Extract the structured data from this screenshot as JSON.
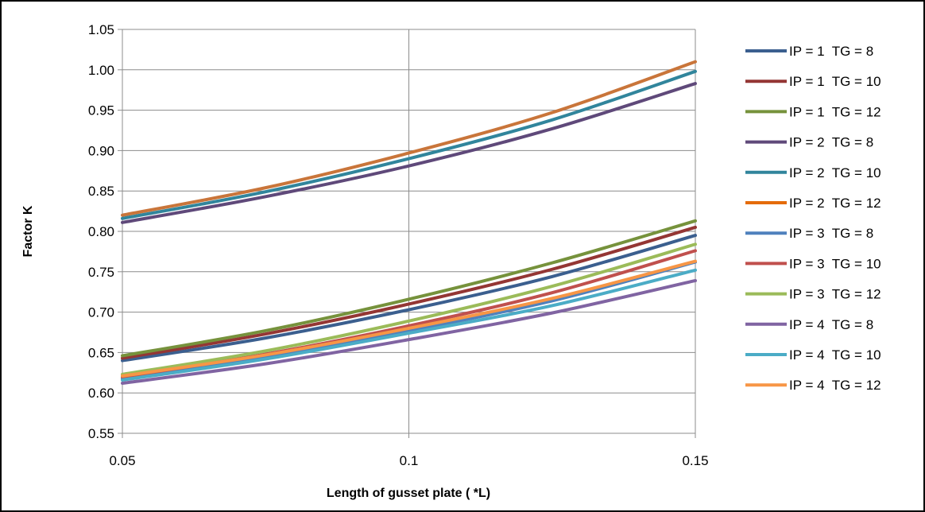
{
  "chart_data": {
    "type": "line",
    "title": "",
    "xlabel": "Length of gusset plate   ( *L)",
    "ylabel": "Factor   K",
    "x": [
      0.05,
      0.075,
      0.1,
      0.125,
      0.15
    ],
    "x_tick_labels": [
      "0.05",
      "0.1",
      "0.15"
    ],
    "x_ticks": [
      0.05,
      0.1,
      0.15
    ],
    "xlim": [
      0.05,
      0.15
    ],
    "ylim": [
      0.55,
      1.05
    ],
    "y_ticks": [
      0.55,
      0.6,
      0.65,
      0.7,
      0.75,
      0.8,
      0.85,
      0.9,
      0.95,
      1.0,
      1.05
    ],
    "y_tick_labels": [
      "0.55",
      "0.60",
      "0.65",
      "0.70",
      "0.75",
      "0.80",
      "0.85",
      "0.90",
      "0.95",
      "1.00",
      "1.05"
    ],
    "grid": "vertical and horizontal major gridlines",
    "legend_position": "right",
    "series": [
      {
        "name": "IP = 1  TG = 8",
        "color": "#3b5f8f",
        "values": [
          0.64,
          0.668,
          0.703,
          0.744,
          0.795
        ]
      },
      {
        "name": "IP = 1  TG = 10",
        "color": "#943634",
        "values": [
          0.643,
          0.673,
          0.71,
          0.753,
          0.805
        ]
      },
      {
        "name": "IP = 1  TG = 12",
        "color": "#76923c",
        "values": [
          0.646,
          0.677,
          0.716,
          0.761,
          0.813
        ]
      },
      {
        "name": "IP = 2  TG = 8",
        "color": "#5f497a",
        "values": [
          0.811,
          0.843,
          0.881,
          0.927,
          0.983
        ]
      },
      {
        "name": "IP = 2  TG = 10",
        "color": "#31859c",
        "values": [
          0.816,
          0.849,
          0.89,
          0.938,
          0.998
        ]
      },
      {
        "name": "IP = 2  TG = 12",
        "color": "#e46c0a",
        "lineColor": "#c9753a",
        "values": [
          0.82,
          0.854,
          0.897,
          0.947,
          1.01
        ]
      },
      {
        "name": "IP = 3  TG = 8",
        "color": "#4f81bd",
        "values": [
          0.618,
          0.645,
          0.677,
          0.714,
          0.762
        ]
      },
      {
        "name": "IP = 3  TG = 10",
        "color": "#c0504d",
        "values": [
          0.62,
          0.648,
          0.683,
          0.724,
          0.776
        ]
      },
      {
        "name": "IP = 3  TG = 12",
        "color": "#9bbb59",
        "values": [
          0.623,
          0.652,
          0.689,
          0.732,
          0.784
        ]
      },
      {
        "name": "IP = 4  TG = 8",
        "color": "#8064a2",
        "values": [
          0.612,
          0.636,
          0.666,
          0.699,
          0.739
        ]
      },
      {
        "name": "IP = 4  TG = 10",
        "color": "#4bacc6",
        "values": [
          0.616,
          0.642,
          0.674,
          0.708,
          0.752
        ]
      },
      {
        "name": "IP = 4  TG = 12",
        "color": "#f79646",
        "values": [
          0.621,
          0.647,
          0.68,
          0.717,
          0.763
        ]
      }
    ]
  }
}
